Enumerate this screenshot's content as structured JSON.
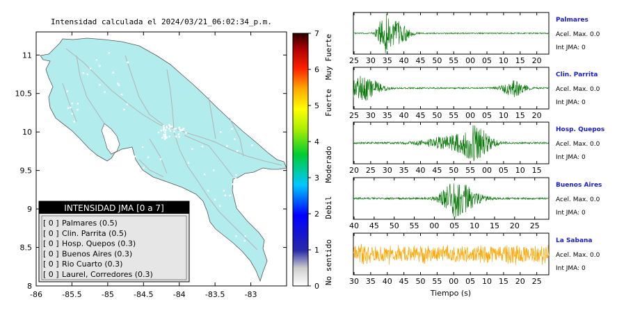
{
  "map": {
    "title": "Intensidad calculada el 2024/03/21_06:02:34_p.m.",
    "x_ticks": [
      "-86",
      "-85.5",
      "-85",
      "-84.5",
      "-84",
      "-83.5",
      "-83"
    ],
    "y_ticks": [
      "11",
      "10.5",
      "10",
      "9.5",
      "9",
      "8.5",
      "8"
    ],
    "xlim": [
      -86,
      -82.5
    ],
    "ylim": [
      8,
      11.3
    ],
    "land_color": "#b3eced",
    "legend": {
      "header": "INTENSIDAD JMA [0 a 7]",
      "items": [
        {
          "level": "[ 0 ]",
          "label": "Palmares (0.5)"
        },
        {
          "level": "[ 0 ]",
          "label": "Clin. Parrita (0.5)"
        },
        {
          "level": "[ 0 ]",
          "label": "Hosp. Quepos (0.3)"
        },
        {
          "level": "[ 0 ]",
          "label": "Buenos Aires (0.3)"
        },
        {
          "level": "[ 0 ]",
          "label": "Rio Cuarto (0.3)"
        },
        {
          "level": "[ 0 ]",
          "label": "Laurel, Corredores (0.3)"
        }
      ]
    }
  },
  "colorbar": {
    "ticks": [
      "7",
      "6",
      "5",
      "4",
      "3",
      "2",
      "1",
      "0"
    ],
    "labels": [
      "Muy Fuerte",
      "Fuerte",
      "Moderado",
      "Debil",
      "No sentido"
    ],
    "range": [
      0,
      7
    ]
  },
  "traces": [
    {
      "name": "Palmares",
      "ticks": [
        "25",
        "30",
        "35",
        "40",
        "45",
        "50",
        "55",
        "00",
        "05",
        "10",
        "15",
        "20"
      ],
      "acel": "Acel. Max. 0.0",
      "int": "Int JMA: 0",
      "color": "#0a7a0a"
    },
    {
      "name": "Clin. Parrita",
      "ticks": [
        "25",
        "30",
        "35",
        "40",
        "45",
        "50",
        "55",
        "00",
        "05",
        "10",
        "15",
        "20"
      ],
      "acel": "Acel. Max. 0.0",
      "int": "Int JMA: 0",
      "color": "#0a7a0a"
    },
    {
      "name": "Hosp. Quepos",
      "ticks": [
        "20",
        "25",
        "30",
        "35",
        "40",
        "45",
        "50",
        "55",
        "00",
        "05",
        "10",
        "15"
      ],
      "acel": "Acel. Max. 0.0",
      "int": "Int JMA: 0",
      "color": "#0a7a0a"
    },
    {
      "name": "Buenos Aires",
      "ticks": [
        "40",
        "45",
        "50",
        "55",
        "00",
        "05",
        "10",
        "15",
        "20",
        "25"
      ],
      "acel": "Acel. Max. 0.0",
      "int": "Int JMA: 0",
      "color": "#0a7a0a"
    },
    {
      "name": "La Sabana",
      "ticks": [
        "30",
        "35",
        "40",
        "45",
        "50",
        "55",
        "00",
        "05",
        "10",
        "15",
        "20",
        "25"
      ],
      "acel": "Acel. Max. 0.0",
      "int": "Int JMA: 0",
      "color": "#ffa500"
    }
  ],
  "xlabel": "Tiempo (s)"
}
